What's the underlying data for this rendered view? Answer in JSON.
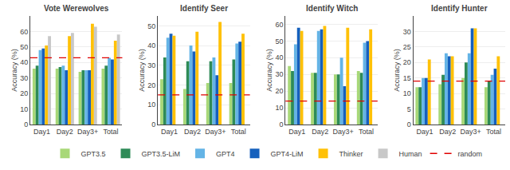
{
  "chart_data": [
    {
      "type": "bar",
      "title": "Vote Werewolves",
      "y_label": "Accuracy (%)",
      "categories": [
        "Day1",
        "Day2",
        "Day3+",
        "Total"
      ],
      "series": [
        {
          "name": "GPT3.5",
          "color": "#a8d878",
          "values": [
            36,
            36,
            34,
            36
          ]
        },
        {
          "name": "GPT3.5-LiM",
          "color": "#2e8b57",
          "values": [
            38,
            37,
            35,
            38
          ]
        },
        {
          "name": "GPT4",
          "color": "#64b4e6",
          "values": [
            48,
            38,
            35,
            43
          ]
        },
        {
          "name": "GPT4-LiM",
          "color": "#1560bd",
          "values": [
            49,
            35,
            35,
            42
          ]
        },
        {
          "name": "Thinker",
          "color": "#ffc107",
          "values": [
            51,
            57,
            65,
            54
          ]
        },
        {
          "name": "Human",
          "color": "#c8c8c8",
          "values": [
            57,
            59,
            63,
            58
          ]
        }
      ],
      "reference_line": {
        "name": "random",
        "value": 43,
        "color": "#e00000",
        "line_style": "dashed"
      },
      "ylim": [
        0,
        70
      ],
      "yticks": [
        0,
        10,
        20,
        30,
        40,
        50,
        60
      ],
      "grid": true,
      "legend": "bottom"
    },
    {
      "type": "bar",
      "title": "Identify Seer",
      "y_label": "Accuracy (%)",
      "categories": [
        "Day1",
        "Day2",
        "Day3+",
        "Total"
      ],
      "series": [
        {
          "name": "GPT3.5",
          "color": "#a8d878",
          "values": [
            23,
            18,
            21,
            21
          ]
        },
        {
          "name": "GPT3.5-LiM",
          "color": "#2e8b57",
          "values": [
            34,
            32,
            32,
            33
          ]
        },
        {
          "name": "GPT4",
          "color": "#64b4e6",
          "values": [
            44,
            40,
            34,
            41
          ]
        },
        {
          "name": "GPT4-LiM",
          "color": "#1560bd",
          "values": [
            46,
            37,
            25,
            42
          ]
        },
        {
          "name": "Thinker",
          "color": "#ffc107",
          "values": [
            45,
            47,
            52,
            46
          ]
        },
        {
          "name": "Human",
          "color": "#c8c8c8",
          "values": [
            null,
            null,
            null,
            null
          ]
        }
      ],
      "reference_line": {
        "name": "random",
        "value": 15,
        "color": "#e00000",
        "line_style": "dashed"
      },
      "ylim": [
        0,
        55
      ],
      "yticks": [
        0,
        10,
        20,
        30,
        40,
        50
      ],
      "grid": true,
      "legend": "bottom"
    },
    {
      "type": "bar",
      "title": "Identify Witch",
      "y_label": "Accuracy (%)",
      "categories": [
        "Day1",
        "Day2",
        "Day3+",
        "Total"
      ],
      "series": [
        {
          "name": "GPT3.5",
          "color": "#a8d878",
          "values": [
            35,
            31,
            30,
            32
          ]
        },
        {
          "name": "GPT3.5-LiM",
          "color": "#2e8b57",
          "values": [
            32,
            31,
            30,
            31
          ]
        },
        {
          "name": "GPT4",
          "color": "#64b4e6",
          "values": [
            48,
            56,
            40,
            49
          ]
        },
        {
          "name": "GPT4-LiM",
          "color": "#1560bd",
          "values": [
            58,
            57,
            23,
            50
          ]
        },
        {
          "name": "Thinker",
          "color": "#ffc107",
          "values": [
            56,
            59,
            58,
            57
          ]
        },
        {
          "name": "Human",
          "color": "#c8c8c8",
          "values": [
            null,
            null,
            null,
            null
          ]
        }
      ],
      "reference_line": {
        "name": "random",
        "value": 14,
        "color": "#e00000",
        "line_style": "dashed"
      },
      "ylim": [
        0,
        65
      ],
      "yticks": [
        0,
        10,
        20,
        30,
        40,
        50,
        60
      ],
      "grid": true,
      "legend": "bottom"
    },
    {
      "type": "bar",
      "title": "Identify Hunter",
      "y_label": "Accuracy (%)",
      "categories": [
        "Day1",
        "Day2",
        "Day3+",
        "Total"
      ],
      "series": [
        {
          "name": "GPT3.5",
          "color": "#a8d878",
          "values": [
            12,
            13,
            15,
            12
          ]
        },
        {
          "name": "GPT3.5-LiM",
          "color": "#2e8b57",
          "values": [
            12,
            16,
            20,
            14
          ]
        },
        {
          "name": "GPT4",
          "color": "#64b4e6",
          "values": [
            15,
            23,
            23,
            16
          ]
        },
        {
          "name": "GPT4-LiM",
          "color": "#1560bd",
          "values": [
            15,
            22,
            31,
            18
          ]
        },
        {
          "name": "Thinker",
          "color": "#ffc107",
          "values": [
            21,
            22,
            31,
            22
          ]
        },
        {
          "name": "Human",
          "color": "#c8c8c8",
          "values": [
            null,
            null,
            null,
            null
          ]
        }
      ],
      "reference_line": {
        "name": "random",
        "value": 14,
        "color": "#e00000",
        "line_style": "dashed"
      },
      "ylim": [
        0,
        35
      ],
      "yticks": [
        0,
        5,
        10,
        15,
        20,
        25,
        30
      ],
      "grid": true,
      "legend": "bottom"
    }
  ]
}
